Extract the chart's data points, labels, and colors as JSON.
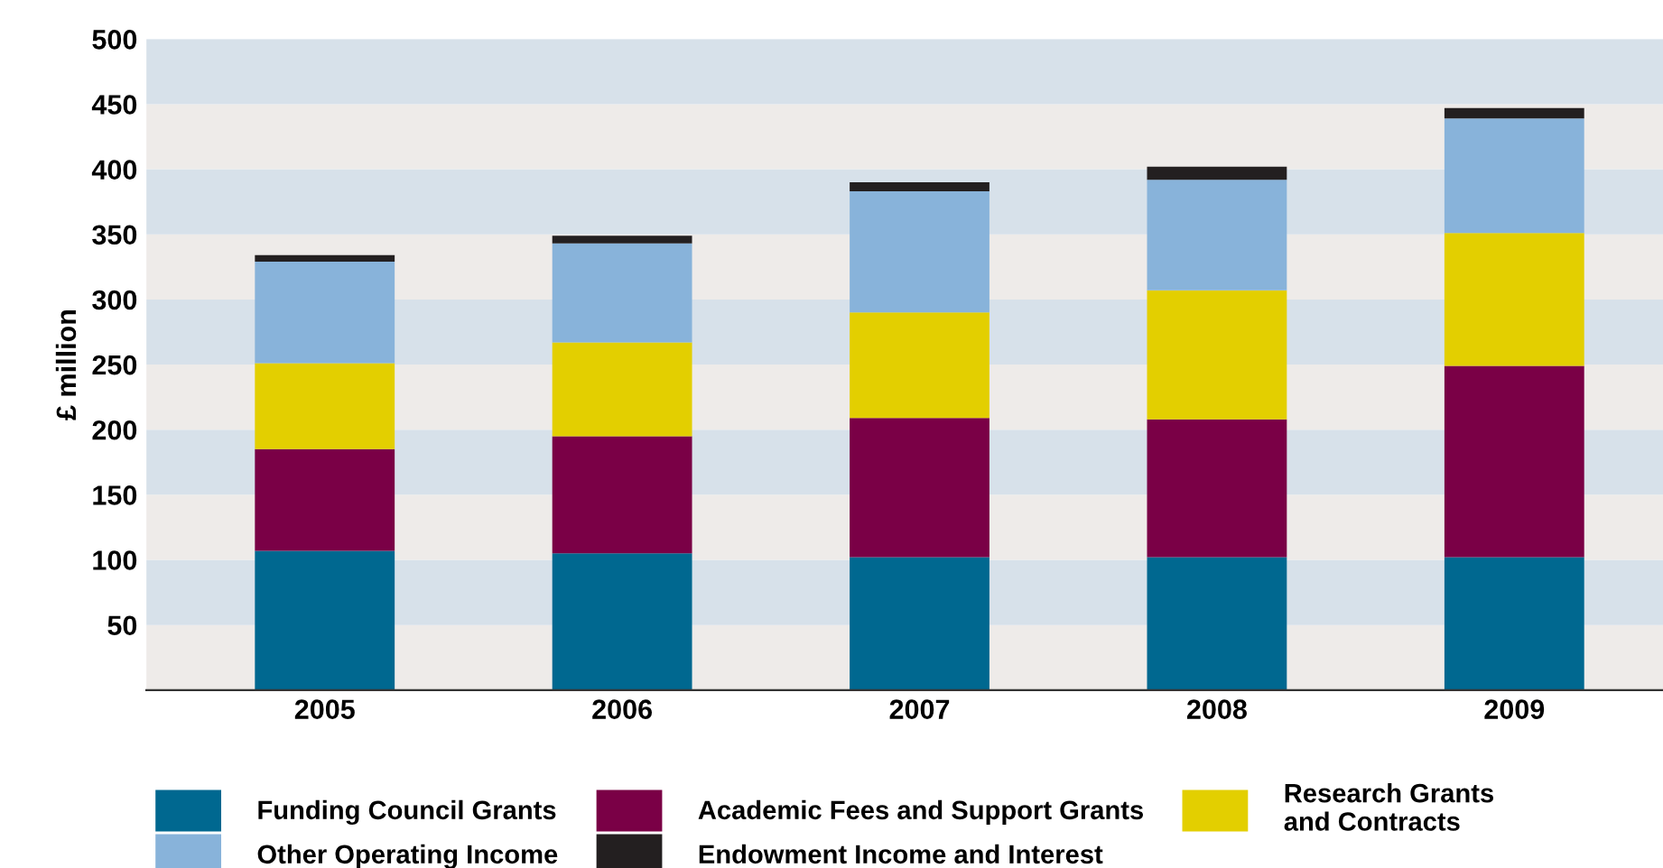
{
  "chart_data": {
    "type": "bar",
    "stacked": true,
    "ylabel": "£ million",
    "categories": [
      "2005",
      "2006",
      "2007",
      "2008",
      "2009"
    ],
    "series": [
      {
        "name": "Funding Council Grants",
        "color": "#006890",
        "values": [
          107,
          105,
          102,
          102,
          102
        ]
      },
      {
        "name": "Academic Fees and Support Grants",
        "color": "#7a0046",
        "values": [
          78,
          90,
          107,
          106,
          147
        ]
      },
      {
        "name": "Research Grants\nand Contracts",
        "color": "#e3cf00",
        "values": [
          66,
          72,
          81,
          99,
          102
        ]
      },
      {
        "name": "Other Operating Income",
        "color": "#88b3da",
        "values": [
          78,
          76,
          93,
          85,
          88
        ]
      },
      {
        "name": "Endowment Income and Interest",
        "color": "#231f20",
        "values": [
          5,
          6,
          7,
          10,
          8
        ]
      }
    ],
    "ylim": [
      0,
      500
    ],
    "yticks": [
      50,
      100,
      150,
      200,
      250,
      300,
      350,
      400,
      450,
      500
    ],
    "bands": [
      {
        "axis": "y",
        "from": 0,
        "to": 50,
        "color": "#eeebe9"
      },
      {
        "axis": "y",
        "from": 50,
        "to": 100,
        "color": "#d7e1ea"
      },
      {
        "axis": "y",
        "from": 100,
        "to": 150,
        "color": "#eeebe9"
      },
      {
        "axis": "y",
        "from": 150,
        "to": 200,
        "color": "#d7e1ea"
      },
      {
        "axis": "y",
        "from": 200,
        "to": 250,
        "color": "#eeebe9"
      },
      {
        "axis": "y",
        "from": 250,
        "to": 300,
        "color": "#d7e1ea"
      },
      {
        "axis": "y",
        "from": 300,
        "to": 350,
        "color": "#eeebe9"
      },
      {
        "axis": "y",
        "from": 350,
        "to": 400,
        "color": "#d7e1ea"
      },
      {
        "axis": "y",
        "from": 400,
        "to": 450,
        "color": "#eeebe9"
      },
      {
        "axis": "y",
        "from": 450,
        "to": 500,
        "color": "#d7e1ea"
      }
    ],
    "legend": "bottom",
    "grid": false
  }
}
